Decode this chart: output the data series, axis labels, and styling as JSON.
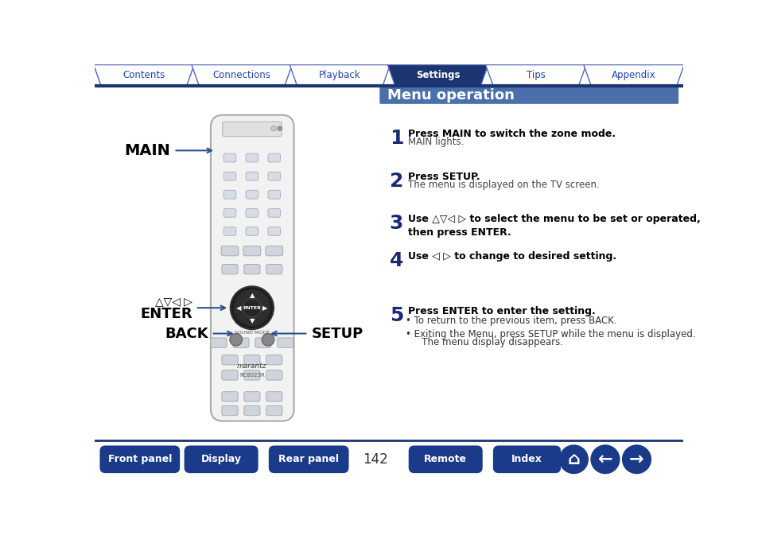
{
  "title": "Menu operation",
  "title_bg": "#4a6faa",
  "title_text_color": "#ffffff",
  "page_bg": "#ffffff",
  "tab_labels": [
    "Contents",
    "Connections",
    "Playback",
    "Settings",
    "Tips",
    "Appendix"
  ],
  "active_tab": 3,
  "tab_active_bg": "#1a3570",
  "tab_inactive_bg": "#ffffff",
  "tab_border_color": "#5566bb",
  "header_line_color": "#1a3570",
  "steps": [
    {
      "num": "1",
      "bold": "Press MAIN to switch the zone mode.",
      "normal": "MAIN lights.",
      "bullets": []
    },
    {
      "num": "2",
      "bold": "Press SETUP.",
      "normal": "The menu is displayed on the TV screen.",
      "bullets": []
    },
    {
      "num": "3",
      "bold": "Use △▽◁ ▷ to select the menu to be set or operated,\nthen press ENTER.",
      "normal": "",
      "bullets": []
    },
    {
      "num": "4",
      "bold": "Use ◁ ▷ to change to desired setting.",
      "normal": "",
      "bullets": []
    },
    {
      "num": "5",
      "bold": "Press ENTER to enter the setting.",
      "normal": "",
      "bullets": [
        "To return to the previous item, press BACK.",
        "Exiting the Menu, press SETUP while the menu is displayed.\n   The menu display disappears."
      ]
    }
  ],
  "footer_button_color": "#1a3a8a",
  "footer_text_color": "#ffffff",
  "page_number": "142",
  "step_num_color": "#1a2a70"
}
